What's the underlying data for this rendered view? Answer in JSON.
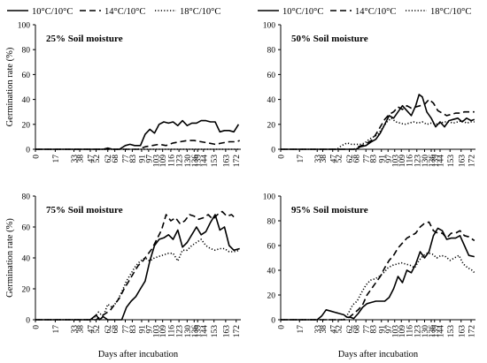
{
  "legend": {
    "items": [
      {
        "label": "10°C/10°C",
        "style": "solid"
      },
      {
        "label": "14°C/10°C",
        "style": "dashed"
      },
      {
        "label": "18°C/10°C",
        "style": "dotted"
      }
    ]
  },
  "chart_data": [
    {
      "type": "line",
      "title": "25% Soil moisture",
      "ylabel": "Germination rate (%)",
      "xlabel": "",
      "ylim": [
        0,
        100
      ],
      "yticks": [
        0,
        20,
        40,
        60,
        80,
        100
      ],
      "xticks": [
        0,
        17,
        33,
        38,
        47,
        52,
        62,
        68,
        77,
        83,
        91,
        97,
        103,
        109,
        116,
        123,
        130,
        136,
        139,
        144,
        153,
        163,
        172
      ],
      "series": [
        {
          "name": "10°C/10°C",
          "style": "solid",
          "x": [
            0,
            58,
            62,
            66,
            72,
            77,
            81,
            85,
            90,
            94,
            98,
            102,
            106,
            110,
            114,
            118,
            122,
            126,
            130,
            134,
            138,
            142,
            146,
            150,
            154,
            158,
            162,
            166,
            170,
            174
          ],
          "y": [
            0,
            0,
            1,
            0,
            0,
            3,
            4,
            3,
            3,
            12,
            16,
            13,
            20,
            22,
            21,
            22,
            19,
            23,
            19,
            21,
            21,
            23,
            23,
            22,
            22,
            14,
            15,
            15,
            14,
            20
          ]
        },
        {
          "name": "14°C/10°C",
          "style": "dashed",
          "x": [
            0,
            88,
            94,
            100,
            106,
            112,
            118,
            124,
            130,
            136,
            142,
            148,
            154,
            160,
            166,
            172,
            175
          ],
          "y": [
            0,
            0,
            2,
            3,
            4,
            3,
            5,
            6,
            7,
            7,
            6,
            5,
            4,
            5,
            6,
            6,
            7
          ]
        },
        {
          "name": "18°C/10°C",
          "style": "dotted",
          "x": [
            0,
            175
          ],
          "y": [
            0,
            0
          ]
        }
      ]
    },
    {
      "type": "line",
      "title": "50% Soil moisture",
      "ylabel": "",
      "xlabel": "",
      "ylim": [
        0,
        100
      ],
      "yticks": [
        0,
        20,
        40,
        60,
        80,
        100
      ],
      "xticks": [
        0,
        17,
        33,
        38,
        47,
        52,
        62,
        68,
        77,
        83,
        91,
        97,
        103,
        109,
        116,
        123,
        130,
        136,
        139,
        144,
        153,
        163,
        172
      ],
      "series": [
        {
          "name": "10°C/10°C",
          "style": "solid",
          "x": [
            0,
            68,
            72,
            77,
            82,
            86,
            90,
            94,
            98,
            102,
            106,
            110,
            114,
            118,
            122,
            125,
            128,
            132,
            136,
            140,
            144,
            148,
            152,
            156,
            160,
            164,
            168,
            172,
            175
          ],
          "y": [
            0,
            0,
            2,
            3,
            6,
            8,
            13,
            20,
            27,
            25,
            30,
            35,
            31,
            27,
            35,
            44,
            42,
            30,
            25,
            18,
            22,
            18,
            23,
            24,
            25,
            22,
            25,
            23,
            24
          ]
        },
        {
          "name": "14°C/10°C",
          "style": "dashed",
          "x": [
            0,
            66,
            70,
            76,
            82,
            86,
            90,
            94,
            98,
            102,
            106,
            110,
            114,
            118,
            122,
            126,
            130,
            134,
            138,
            142,
            146,
            150,
            154,
            158,
            162,
            166,
            170,
            175
          ],
          "y": [
            0,
            0,
            2,
            4,
            7,
            12,
            18,
            24,
            28,
            30,
            34,
            32,
            35,
            33,
            34,
            35,
            36,
            40,
            37,
            31,
            29,
            27,
            28,
            29,
            29,
            30,
            30,
            30
          ]
        },
        {
          "name": "18°C/10°C",
          "style": "dotted",
          "x": [
            0,
            51,
            55,
            60,
            64,
            68,
            72,
            76,
            80,
            84,
            88,
            92,
            96,
            100,
            104,
            108,
            112,
            116,
            120,
            124,
            128,
            132,
            136,
            140,
            144,
            148,
            152,
            156,
            160,
            164,
            168,
            172,
            175
          ],
          "y": [
            0,
            0,
            3,
            5,
            4,
            4,
            4,
            5,
            8,
            10,
            12,
            17,
            22,
            25,
            22,
            21,
            20,
            21,
            22,
            21,
            22,
            20,
            21,
            20,
            21,
            22,
            22,
            21,
            22,
            23,
            21,
            22,
            22
          ]
        }
      ]
    },
    {
      "type": "line",
      "title": "75% Soil moisture",
      "ylabel": "Germination rate (%)",
      "xlabel": "Days after incubation",
      "ylim": [
        0,
        80
      ],
      "yticks": [
        0,
        20,
        40,
        60,
        80
      ],
      "xticks": [
        0,
        17,
        33,
        38,
        47,
        52,
        62,
        68,
        77,
        83,
        91,
        97,
        103,
        109,
        116,
        123,
        130,
        136,
        139,
        144,
        153,
        163,
        172
      ],
      "series": [
        {
          "name": "10°C/10°C",
          "style": "solid",
          "x": [
            0,
            47,
            52,
            55,
            58,
            62,
            66,
            70,
            74,
            78,
            82,
            86,
            90,
            94,
            98,
            102,
            106,
            110,
            114,
            118,
            122,
            126,
            130,
            134,
            138,
            142,
            146,
            150,
            154,
            158,
            162,
            166,
            170,
            175
          ],
          "y": [
            0,
            0,
            3,
            0,
            2,
            0,
            0,
            0,
            0,
            8,
            12,
            15,
            20,
            25,
            38,
            48,
            52,
            53,
            55,
            52,
            58,
            47,
            50,
            55,
            60,
            55,
            57,
            63,
            68,
            58,
            60,
            48,
            45,
            46
          ]
        },
        {
          "name": "14°C/10°C",
          "style": "dashed",
          "x": [
            0,
            52,
            56,
            60,
            64,
            68,
            72,
            76,
            80,
            84,
            88,
            92,
            96,
            100,
            104,
            108,
            112,
            116,
            120,
            124,
            128,
            132,
            136,
            140,
            144,
            148,
            152,
            156,
            160,
            164,
            168,
            172
          ],
          "y": [
            0,
            0,
            2,
            4,
            6,
            10,
            14,
            20,
            25,
            30,
            35,
            38,
            42,
            46,
            52,
            58,
            68,
            64,
            66,
            62,
            64,
            68,
            67,
            65,
            66,
            68,
            65,
            68,
            70,
            67,
            68,
            65
          ]
        },
        {
          "name": "18°C/10°C",
          "style": "dotted",
          "x": [
            0,
            49,
            54,
            58,
            62,
            66,
            70,
            74,
            78,
            82,
            86,
            90,
            94,
            98,
            102,
            106,
            110,
            114,
            118,
            122,
            126,
            130,
            134,
            138,
            142,
            146,
            150,
            154,
            158,
            162,
            166,
            170,
            175
          ],
          "y": [
            0,
            0,
            5,
            2,
            10,
            8,
            12,
            18,
            25,
            30,
            35,
            38,
            40,
            38,
            40,
            41,
            42,
            43,
            43,
            38,
            45,
            45,
            48,
            50,
            52,
            48,
            46,
            45,
            46,
            46,
            44,
            44,
            45
          ]
        }
      ]
    },
    {
      "type": "line",
      "title": "95% Soil moisture",
      "ylabel": "",
      "xlabel": "Days after incubation",
      "ylim": [
        0,
        100
      ],
      "yticks": [
        0,
        20,
        40,
        60,
        80,
        100
      ],
      "xticks": [
        0,
        17,
        33,
        38,
        47,
        52,
        62,
        68,
        77,
        83,
        91,
        97,
        103,
        109,
        116,
        123,
        130,
        136,
        139,
        144,
        153,
        163,
        172
      ],
      "series": [
        {
          "name": "10°C/10°C",
          "style": "solid",
          "x": [
            0,
            33,
            37,
            41,
            45,
            49,
            53,
            57,
            60,
            63,
            66,
            70,
            74,
            78,
            82,
            86,
            90,
            94,
            98,
            102,
            106,
            110,
            114,
            118,
            122,
            126,
            130,
            134,
            138,
            142,
            146,
            150,
            154,
            158,
            162,
            166,
            170,
            175
          ],
          "y": [
            0,
            0,
            3,
            8,
            7,
            6,
            5,
            4,
            2,
            2,
            1,
            5,
            10,
            13,
            14,
            15,
            15,
            15,
            18,
            25,
            35,
            30,
            40,
            38,
            45,
            55,
            50,
            55,
            68,
            74,
            72,
            65,
            66,
            66,
            68,
            60,
            52,
            51
          ]
        },
        {
          "name": "14°C/10°C",
          "style": "dashed",
          "x": [
            0,
            58,
            62,
            66,
            70,
            74,
            78,
            82,
            86,
            90,
            94,
            98,
            102,
            106,
            110,
            114,
            118,
            122,
            126,
            130,
            134,
            138,
            142,
            146,
            150,
            154,
            158,
            162,
            166,
            170,
            175
          ],
          "y": [
            0,
            0,
            2,
            5,
            8,
            12,
            20,
            25,
            30,
            35,
            42,
            48,
            52,
            58,
            62,
            66,
            68,
            70,
            75,
            78,
            79,
            72,
            70,
            70,
            66,
            70,
            70,
            72,
            68,
            67,
            64
          ]
        },
        {
          "name": "18°C/10°C",
          "style": "dotted",
          "x": [
            0,
            57,
            61,
            65,
            69,
            73,
            77,
            81,
            85,
            89,
            93,
            97,
            101,
            105,
            109,
            113,
            117,
            121,
            125,
            129,
            133,
            137,
            141,
            145,
            149,
            153,
            157,
            161,
            165,
            169,
            173,
            175
          ],
          "y": [
            0,
            0,
            5,
            12,
            15,
            22,
            28,
            32,
            33,
            35,
            38,
            42,
            44,
            45,
            46,
            45,
            44,
            42,
            48,
            52,
            54,
            53,
            50,
            52,
            51,
            48,
            50,
            52,
            45,
            42,
            40,
            38
          ]
        }
      ]
    }
  ]
}
